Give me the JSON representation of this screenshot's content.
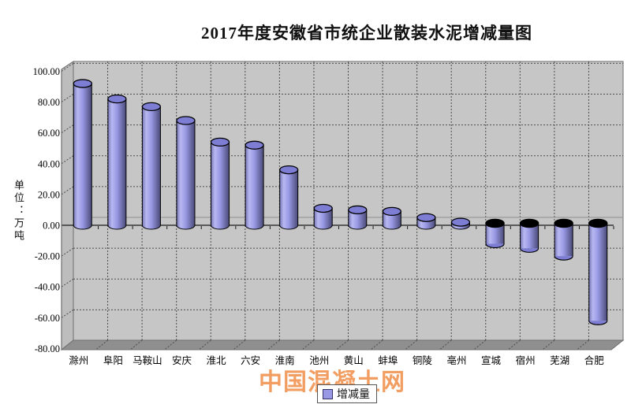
{
  "page": {
    "background": "#ffffff"
  },
  "watermark": {
    "text": "中国混凝土网",
    "color": "#f29e62"
  },
  "legend": {
    "position": "bottom"
  },
  "chart_data": {
    "type": "bar",
    "style": "3d-cylinder",
    "title": "2017年度安徽省市统企业散装水泥增减量图",
    "ylabel": "单位：万吨",
    "xlabel": "",
    "categories": [
      "滁州",
      "阜阳",
      "马鞍山",
      "安庆",
      "淮北",
      "六安",
      "淮南",
      "池州",
      "黄山",
      "蚌埠",
      "铜陵",
      "亳州",
      "宣城",
      "宿州",
      "芜湖",
      "合肥"
    ],
    "series": [
      {
        "name": "增减量",
        "values": [
          92,
          82,
          77,
          68,
          54,
          52,
          36,
          11,
          10,
          9,
          5,
          2,
          -12,
          -15,
          -20,
          -62
        ]
      }
    ],
    "ylim": [
      -80,
      100
    ],
    "ytick_step": 20,
    "ytick_values": [
      100,
      80,
      60,
      40,
      20,
      0,
      -20,
      -40,
      -60,
      -80
    ],
    "ytick_labels": [
      "100.00",
      "80.00",
      "60.00",
      "40.00",
      "20.00",
      "0.00",
      "-20.00",
      "-40.00",
      "-60.00",
      "-80.00"
    ],
    "grid": true,
    "legend_label": "增减量",
    "colors": {
      "bar_body": "#9898e4",
      "bar_body_light": "#b8b8f2",
      "bar_body_dark": "#4a4a78",
      "bar_edge_left": "#7878b8",
      "bar_top": "#7d7dd4",
      "bar_outline": "#000000",
      "negative_cap": "#000000",
      "back_wall": "#c6c6c6",
      "left_wall": "#bdbdbd",
      "floor": "#8f8f8f",
      "frame": "#6f6f6f",
      "gridline": "#4d4d4d",
      "zero_line_back": "#9a9a9a",
      "axis_line": "#1a1a1a",
      "text": "#000000"
    }
  }
}
